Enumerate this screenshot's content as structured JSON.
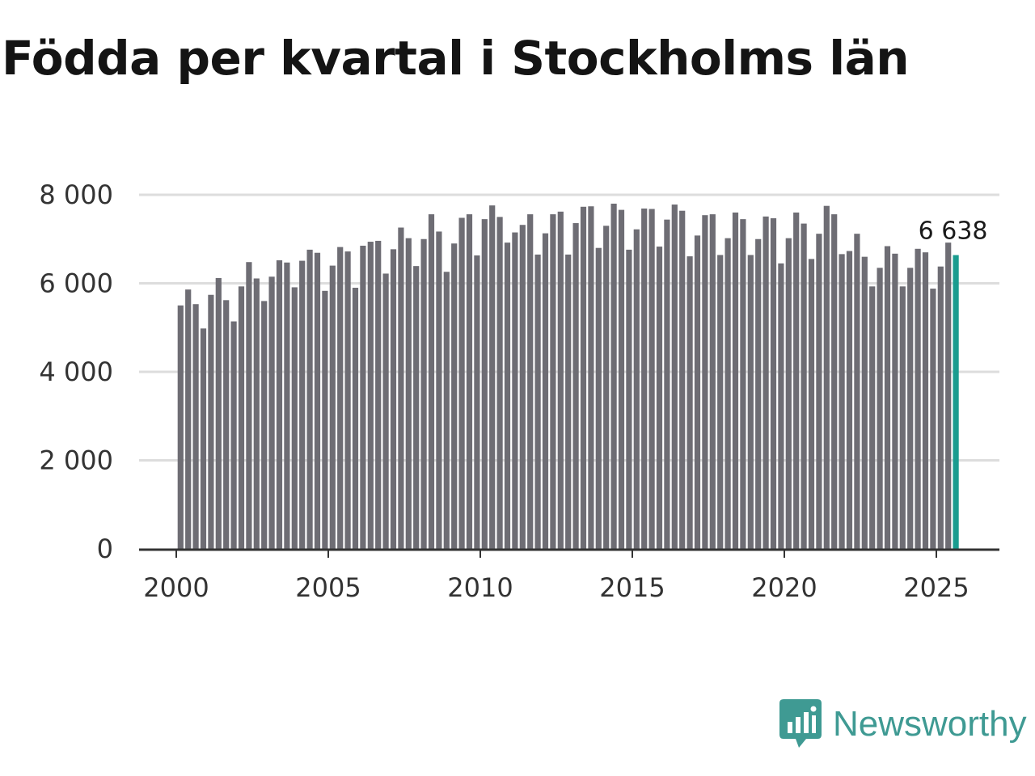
{
  "chart_data": {
    "type": "bar",
    "title": "Födda per kvartal i Stockholms län",
    "xlabel": "",
    "ylabel": "",
    "ylim": [
      0,
      8000
    ],
    "y_ticks": [
      {
        "value": 0,
        "label": "0"
      },
      {
        "value": 2000,
        "label": "2 000"
      },
      {
        "value": 4000,
        "label": "4 000"
      },
      {
        "value": 6000,
        "label": "6 000"
      },
      {
        "value": 8000,
        "label": "8 000"
      }
    ],
    "x_ticks": [
      {
        "value": 2000,
        "label": "2000"
      },
      {
        "value": 2005,
        "label": "2005"
      },
      {
        "value": 2010,
        "label": "2010"
      },
      {
        "value": 2015,
        "label": "2015"
      },
      {
        "value": 2020,
        "label": "2020"
      },
      {
        "value": 2025,
        "label": "2025"
      }
    ],
    "start_year": 2000,
    "start_quarter": 1,
    "values": [
      5500,
      5860,
      5530,
      4980,
      5740,
      6120,
      5620,
      5140,
      5930,
      6480,
      6110,
      5600,
      6150,
      6520,
      6470,
      5910,
      6510,
      6760,
      6690,
      5830,
      6400,
      6820,
      6720,
      5900,
      6850,
      6940,
      6960,
      6220,
      6770,
      7260,
      7020,
      6390,
      7000,
      7560,
      7170,
      6260,
      6900,
      7480,
      7560,
      6630,
      7450,
      7760,
      7500,
      6920,
      7150,
      7320,
      7560,
      6650,
      7130,
      7560,
      7620,
      6650,
      7360,
      7730,
      7740,
      6800,
      7300,
      7800,
      7660,
      6760,
      7220,
      7690,
      7680,
      6830,
      7440,
      7780,
      7640,
      6610,
      7080,
      7540,
      7560,
      6640,
      7020,
      7600,
      7450,
      6640,
      7000,
      7510,
      7470,
      6450,
      7020,
      7600,
      7350,
      6550,
      7120,
      7750,
      7560,
      6660,
      6730,
      7120,
      6600,
      5930,
      6350,
      6840,
      6670,
      5930,
      6350,
      6780,
      6700,
      5880,
      6380,
      6920,
      6638
    ],
    "highlight": {
      "index": "last",
      "color": "#1a9c8f",
      "label": "6 638"
    },
    "bar_color": "#6e6d74",
    "grid_color": "#dddddd",
    "axis_color": "#333333"
  },
  "brand": {
    "name": "Newsworthy",
    "color": "#3f9a93"
  }
}
